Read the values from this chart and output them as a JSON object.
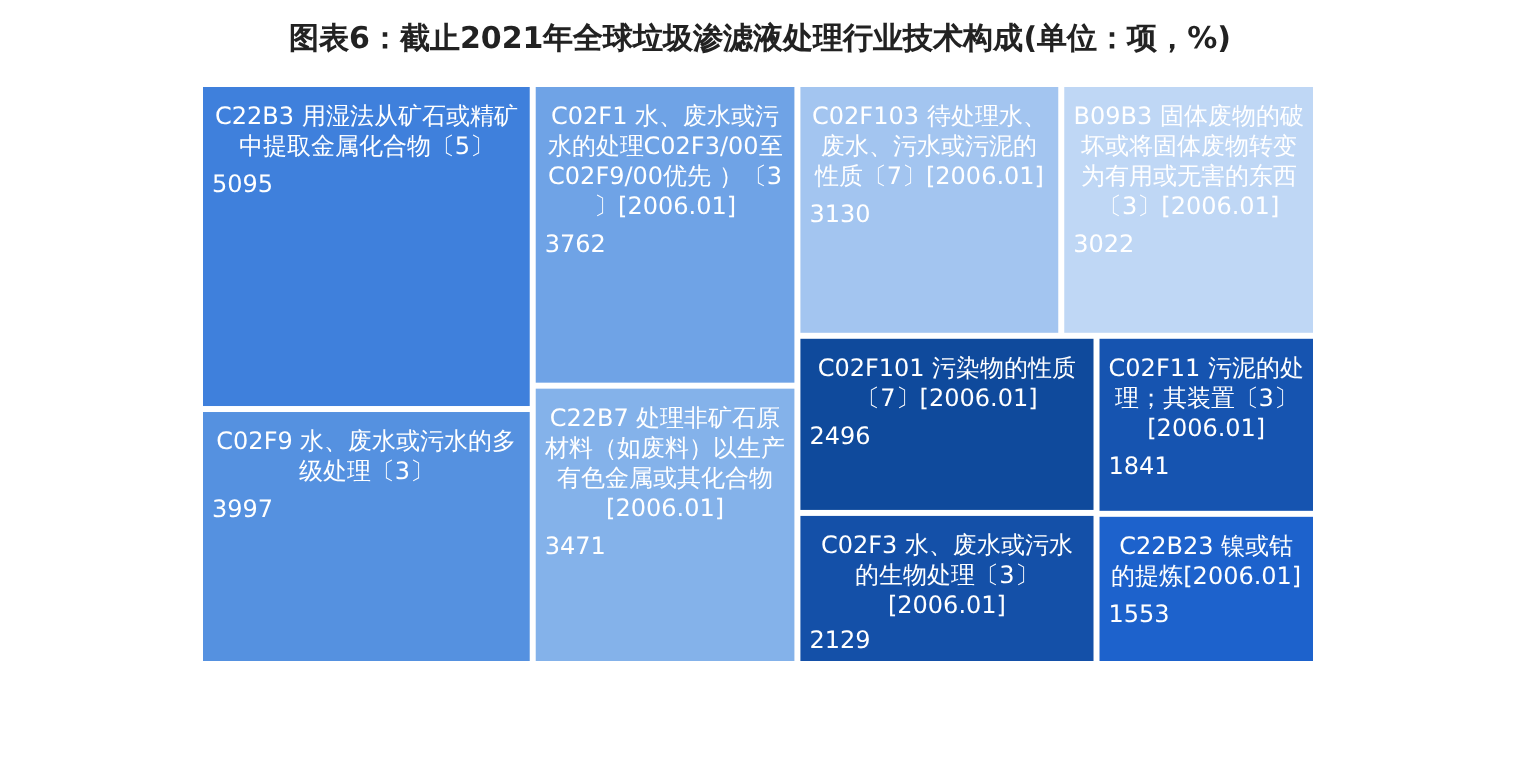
{
  "chart_data": {
    "type": "other",
    "title": "图表6：截止2021年全球垃圾渗滤液处理行业技术构成(单位：项，%)",
    "categories": [
      "C22B3 用湿法从矿石或精矿中提取金属化合物〔5〕",
      "C02F9 水、废水或污水的多级处理〔3〕",
      "C02F1 水、废水或污水的处理C02F3/00至C02F9/00优先 ）〔3〕[2006.01]",
      "C22B7 处理非矿石原材料（如废料）以生产有色金属或其化合物[2006.01]",
      "C02F103 待处理水、废水、污水或污泥的性质〔7〕[2006.01]",
      "B09B3 固体废物的破坏或将固体废物转变为有用或无害的东西〔3〕[2006.01]",
      "C02F101 污染物的性质〔7〕[2006.01]",
      "C02F3 水、废水或污水的生物处理〔3〕[2006.01]",
      "C02F11 污泥的处理；其装置〔3〕[2006.01]",
      "C22B23 镍或钴的提炼[2006.01]"
    ],
    "values": [
      5095,
      3997,
      3762,
      3471,
      3130,
      3022,
      2496,
      2129,
      1841,
      1553
    ],
    "colors": [
      "#3f80dc",
      "#5591e0",
      "#6fa3e6",
      "#84b2ea",
      "#a3c5f0",
      "#bfd7f5",
      "#0f4a9c",
      "#1450a8",
      "#1654b0",
      "#1d62cc"
    ],
    "data_labels": true
  }
}
